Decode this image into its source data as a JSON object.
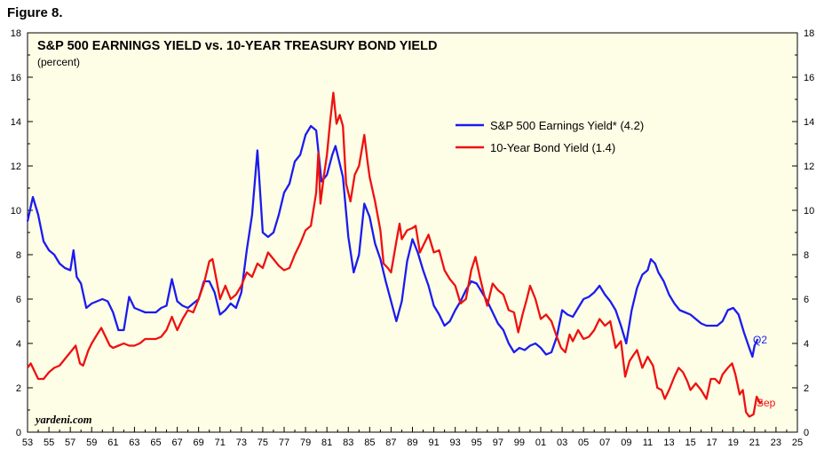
{
  "figure_label": "Figure 8.",
  "chart_data": {
    "type": "line",
    "title": "S&P 500 EARNINGS YIELD vs. 10-YEAR TREASURY BOND YIELD",
    "subtitle": "(percent)",
    "source": "yardeni.com",
    "xlim": [
      1953,
      2025
    ],
    "ylim": [
      0,
      18
    ],
    "y_ticks": [
      0,
      2,
      4,
      6,
      8,
      10,
      12,
      14,
      16,
      18
    ],
    "x_tick_labels": [
      "53",
      "55",
      "57",
      "59",
      "61",
      "63",
      "65",
      "67",
      "69",
      "71",
      "73",
      "75",
      "77",
      "79",
      "81",
      "83",
      "85",
      "87",
      "89",
      "91",
      "93",
      "95",
      "97",
      "99",
      "01",
      "03",
      "05",
      "07",
      "09",
      "11",
      "13",
      "15",
      "17",
      "19",
      "21",
      "23",
      "25"
    ],
    "background": "#fefee6",
    "grid": false,
    "legend_position": "top-right",
    "series": [
      {
        "name": "S&P 500 Earnings Yield* (4.2)",
        "end_label": "Q2",
        "color": "#1b1bf0",
        "points": [
          [
            1953.0,
            9.5
          ],
          [
            1953.5,
            10.6
          ],
          [
            1954.0,
            9.8
          ],
          [
            1954.5,
            8.6
          ],
          [
            1955.0,
            8.2
          ],
          [
            1955.5,
            8.0
          ],
          [
            1956.0,
            7.6
          ],
          [
            1956.5,
            7.4
          ],
          [
            1957.0,
            7.3
          ],
          [
            1957.3,
            8.2
          ],
          [
            1957.6,
            7.0
          ],
          [
            1958.0,
            6.7
          ],
          [
            1958.5,
            5.6
          ],
          [
            1959.0,
            5.8
          ],
          [
            1959.5,
            5.9
          ],
          [
            1960.0,
            6.0
          ],
          [
            1960.5,
            5.9
          ],
          [
            1961.0,
            5.4
          ],
          [
            1961.5,
            4.6
          ],
          [
            1962.0,
            4.6
          ],
          [
            1962.5,
            6.1
          ],
          [
            1963.0,
            5.6
          ],
          [
            1963.5,
            5.5
          ],
          [
            1964.0,
            5.4
          ],
          [
            1964.5,
            5.4
          ],
          [
            1965.0,
            5.4
          ],
          [
            1965.5,
            5.6
          ],
          [
            1966.0,
            5.7
          ],
          [
            1966.5,
            6.9
          ],
          [
            1967.0,
            5.9
          ],
          [
            1967.5,
            5.7
          ],
          [
            1968.0,
            5.6
          ],
          [
            1968.5,
            5.8
          ],
          [
            1969.0,
            6.0
          ],
          [
            1969.5,
            6.8
          ],
          [
            1970.0,
            6.8
          ],
          [
            1970.5,
            6.3
          ],
          [
            1971.0,
            5.3
          ],
          [
            1971.5,
            5.5
          ],
          [
            1972.0,
            5.8
          ],
          [
            1972.5,
            5.6
          ],
          [
            1973.0,
            6.3
          ],
          [
            1973.5,
            8.2
          ],
          [
            1974.0,
            9.8
          ],
          [
            1974.5,
            12.7
          ],
          [
            1974.8,
            10.5
          ],
          [
            1975.0,
            9.0
          ],
          [
            1975.5,
            8.8
          ],
          [
            1976.0,
            9.0
          ],
          [
            1976.5,
            9.8
          ],
          [
            1977.0,
            10.8
          ],
          [
            1977.5,
            11.2
          ],
          [
            1978.0,
            12.2
          ],
          [
            1978.5,
            12.5
          ],
          [
            1979.0,
            13.4
          ],
          [
            1979.5,
            13.8
          ],
          [
            1980.0,
            13.6
          ],
          [
            1980.5,
            11.3
          ],
          [
            1981.0,
            11.6
          ],
          [
            1981.5,
            12.5
          ],
          [
            1981.8,
            12.9
          ],
          [
            1982.0,
            12.5
          ],
          [
            1982.5,
            11.5
          ],
          [
            1983.0,
            8.8
          ],
          [
            1983.5,
            7.2
          ],
          [
            1984.0,
            8.0
          ],
          [
            1984.5,
            10.3
          ],
          [
            1985.0,
            9.7
          ],
          [
            1985.5,
            8.5
          ],
          [
            1986.0,
            7.8
          ],
          [
            1986.5,
            6.8
          ],
          [
            1987.0,
            5.9
          ],
          [
            1987.5,
            5.0
          ],
          [
            1988.0,
            5.9
          ],
          [
            1988.5,
            7.7
          ],
          [
            1989.0,
            8.7
          ],
          [
            1989.5,
            8.1
          ],
          [
            1990.0,
            7.3
          ],
          [
            1990.5,
            6.6
          ],
          [
            1991.0,
            5.7
          ],
          [
            1991.5,
            5.3
          ],
          [
            1992.0,
            4.8
          ],
          [
            1992.5,
            5.0
          ],
          [
            1993.0,
            5.5
          ],
          [
            1993.5,
            5.9
          ],
          [
            1994.0,
            6.4
          ],
          [
            1994.5,
            6.8
          ],
          [
            1995.0,
            6.7
          ],
          [
            1995.5,
            6.3
          ],
          [
            1996.0,
            5.9
          ],
          [
            1996.5,
            5.4
          ],
          [
            1997.0,
            4.9
          ],
          [
            1997.5,
            4.6
          ],
          [
            1998.0,
            4.0
          ],
          [
            1998.5,
            3.6
          ],
          [
            1999.0,
            3.8
          ],
          [
            1999.5,
            3.7
          ],
          [
            2000.0,
            3.9
          ],
          [
            2000.5,
            4.0
          ],
          [
            2001.0,
            3.8
          ],
          [
            2001.5,
            3.5
          ],
          [
            2002.0,
            3.6
          ],
          [
            2002.5,
            4.3
          ],
          [
            2003.0,
            5.5
          ],
          [
            2003.5,
            5.3
          ],
          [
            2004.0,
            5.2
          ],
          [
            2004.5,
            5.6
          ],
          [
            2005.0,
            6.0
          ],
          [
            2005.5,
            6.1
          ],
          [
            2006.0,
            6.3
          ],
          [
            2006.5,
            6.6
          ],
          [
            2007.0,
            6.2
          ],
          [
            2007.5,
            5.9
          ],
          [
            2008.0,
            5.5
          ],
          [
            2008.5,
            4.8
          ],
          [
            2009.0,
            4.0
          ],
          [
            2009.5,
            5.5
          ],
          [
            2010.0,
            6.5
          ],
          [
            2010.5,
            7.1
          ],
          [
            2011.0,
            7.3
          ],
          [
            2011.3,
            7.8
          ],
          [
            2011.7,
            7.6
          ],
          [
            2012.0,
            7.2
          ],
          [
            2012.5,
            6.8
          ],
          [
            2013.0,
            6.2
          ],
          [
            2013.5,
            5.8
          ],
          [
            2014.0,
            5.5
          ],
          [
            2014.5,
            5.4
          ],
          [
            2015.0,
            5.3
          ],
          [
            2015.5,
            5.1
          ],
          [
            2016.0,
            4.9
          ],
          [
            2016.5,
            4.8
          ],
          [
            2017.0,
            4.8
          ],
          [
            2017.5,
            4.8
          ],
          [
            2018.0,
            5.0
          ],
          [
            2018.5,
            5.5
          ],
          [
            2019.0,
            5.6
          ],
          [
            2019.5,
            5.3
          ],
          [
            2020.0,
            4.5
          ],
          [
            2020.5,
            3.8
          ],
          [
            2020.8,
            3.4
          ],
          [
            2021.0,
            3.9
          ],
          [
            2021.3,
            4.2
          ]
        ]
      },
      {
        "name": "10-Year Bond Yield (1.4)",
        "end_label": "Sep",
        "color": "#ee1111",
        "points": [
          [
            1953.0,
            2.9
          ],
          [
            1953.3,
            3.1
          ],
          [
            1953.7,
            2.7
          ],
          [
            1954.0,
            2.4
          ],
          [
            1954.5,
            2.4
          ],
          [
            1955.0,
            2.7
          ],
          [
            1955.5,
            2.9
          ],
          [
            1956.0,
            3.0
          ],
          [
            1956.5,
            3.3
          ],
          [
            1957.0,
            3.6
          ],
          [
            1957.5,
            3.9
          ],
          [
            1957.9,
            3.1
          ],
          [
            1958.2,
            3.0
          ],
          [
            1958.7,
            3.7
          ],
          [
            1959.0,
            4.0
          ],
          [
            1959.5,
            4.4
          ],
          [
            1959.9,
            4.7
          ],
          [
            1960.3,
            4.3
          ],
          [
            1960.7,
            3.9
          ],
          [
            1961.0,
            3.8
          ],
          [
            1961.5,
            3.9
          ],
          [
            1962.0,
            4.0
          ],
          [
            1962.5,
            3.9
          ],
          [
            1963.0,
            3.9
          ],
          [
            1963.5,
            4.0
          ],
          [
            1964.0,
            4.2
          ],
          [
            1964.5,
            4.2
          ],
          [
            1965.0,
            4.2
          ],
          [
            1965.5,
            4.3
          ],
          [
            1966.0,
            4.6
          ],
          [
            1966.5,
            5.2
          ],
          [
            1967.0,
            4.6
          ],
          [
            1967.5,
            5.1
          ],
          [
            1968.0,
            5.5
          ],
          [
            1968.5,
            5.4
          ],
          [
            1969.0,
            6.0
          ],
          [
            1969.5,
            6.7
          ],
          [
            1970.0,
            7.7
          ],
          [
            1970.3,
            7.8
          ],
          [
            1970.7,
            6.8
          ],
          [
            1971.0,
            6.0
          ],
          [
            1971.5,
            6.6
          ],
          [
            1972.0,
            6.0
          ],
          [
            1972.5,
            6.2
          ],
          [
            1973.0,
            6.6
          ],
          [
            1973.5,
            7.2
          ],
          [
            1974.0,
            7.0
          ],
          [
            1974.5,
            7.6
          ],
          [
            1975.0,
            7.4
          ],
          [
            1975.5,
            8.1
          ],
          [
            1976.0,
            7.8
          ],
          [
            1976.5,
            7.5
          ],
          [
            1977.0,
            7.3
          ],
          [
            1977.5,
            7.4
          ],
          [
            1978.0,
            8.0
          ],
          [
            1978.5,
            8.5
          ],
          [
            1979.0,
            9.1
          ],
          [
            1979.5,
            9.3
          ],
          [
            1980.0,
            10.8
          ],
          [
            1980.2,
            12.6
          ],
          [
            1980.4,
            10.3
          ],
          [
            1980.7,
            11.5
          ],
          [
            1981.0,
            12.5
          ],
          [
            1981.3,
            14.0
          ],
          [
            1981.6,
            15.3
          ],
          [
            1981.9,
            13.9
          ],
          [
            1982.2,
            14.3
          ],
          [
            1982.5,
            13.8
          ],
          [
            1982.8,
            11.2
          ],
          [
            1983.2,
            10.4
          ],
          [
            1983.6,
            11.6
          ],
          [
            1984.0,
            12.0
          ],
          [
            1984.5,
            13.4
          ],
          [
            1984.8,
            12.2
          ],
          [
            1985.0,
            11.5
          ],
          [
            1985.5,
            10.4
          ],
          [
            1986.0,
            9.1
          ],
          [
            1986.3,
            7.6
          ],
          [
            1986.7,
            7.4
          ],
          [
            1987.0,
            7.2
          ],
          [
            1987.5,
            8.6
          ],
          [
            1987.8,
            9.4
          ],
          [
            1988.0,
            8.7
          ],
          [
            1988.5,
            9.1
          ],
          [
            1989.0,
            9.2
          ],
          [
            1989.3,
            9.3
          ],
          [
            1989.7,
            8.1
          ],
          [
            1990.0,
            8.4
          ],
          [
            1990.5,
            8.9
          ],
          [
            1991.0,
            8.1
          ],
          [
            1991.5,
            8.2
          ],
          [
            1992.0,
            7.3
          ],
          [
            1992.5,
            6.9
          ],
          [
            1993.0,
            6.6
          ],
          [
            1993.5,
            5.8
          ],
          [
            1994.0,
            6.0
          ],
          [
            1994.5,
            7.3
          ],
          [
            1994.9,
            7.9
          ],
          [
            1995.3,
            7.0
          ],
          [
            1995.7,
            6.2
          ],
          [
            1996.0,
            5.7
          ],
          [
            1996.5,
            6.7
          ],
          [
            1997.0,
            6.4
          ],
          [
            1997.5,
            6.2
          ],
          [
            1998.0,
            5.5
          ],
          [
            1998.5,
            5.4
          ],
          [
            1998.9,
            4.5
          ],
          [
            1999.3,
            5.3
          ],
          [
            1999.7,
            6.0
          ],
          [
            2000.0,
            6.6
          ],
          [
            2000.5,
            6.0
          ],
          [
            2001.0,
            5.1
          ],
          [
            2001.5,
            5.3
          ],
          [
            2002.0,
            5.0
          ],
          [
            2002.5,
            4.3
          ],
          [
            2002.9,
            3.8
          ],
          [
            2003.3,
            3.6
          ],
          [
            2003.7,
            4.4
          ],
          [
            2004.0,
            4.1
          ],
          [
            2004.5,
            4.6
          ],
          [
            2005.0,
            4.2
          ],
          [
            2005.5,
            4.3
          ],
          [
            2006.0,
            4.6
          ],
          [
            2006.5,
            5.1
          ],
          [
            2007.0,
            4.8
          ],
          [
            2007.5,
            5.0
          ],
          [
            2008.0,
            3.8
          ],
          [
            2008.5,
            4.1
          ],
          [
            2008.9,
            2.5
          ],
          [
            2009.3,
            3.2
          ],
          [
            2009.7,
            3.5
          ],
          [
            2010.0,
            3.7
          ],
          [
            2010.5,
            2.9
          ],
          [
            2011.0,
            3.4
          ],
          [
            2011.5,
            3.0
          ],
          [
            2011.9,
            2.0
          ],
          [
            2012.3,
            1.9
          ],
          [
            2012.6,
            1.5
          ],
          [
            2013.0,
            1.9
          ],
          [
            2013.5,
            2.5
          ],
          [
            2013.9,
            2.9
          ],
          [
            2014.3,
            2.7
          ],
          [
            2014.7,
            2.3
          ],
          [
            2015.0,
            1.9
          ],
          [
            2015.5,
            2.2
          ],
          [
            2016.0,
            1.9
          ],
          [
            2016.5,
            1.5
          ],
          [
            2016.9,
            2.4
          ],
          [
            2017.3,
            2.4
          ],
          [
            2017.7,
            2.2
          ],
          [
            2018.0,
            2.6
          ],
          [
            2018.5,
            2.9
          ],
          [
            2018.9,
            3.1
          ],
          [
            2019.2,
            2.6
          ],
          [
            2019.6,
            1.7
          ],
          [
            2019.9,
            1.9
          ],
          [
            2020.2,
            0.9
          ],
          [
            2020.5,
            0.7
          ],
          [
            2020.9,
            0.8
          ],
          [
            2021.2,
            1.6
          ],
          [
            2021.5,
            1.3
          ],
          [
            2021.7,
            1.4
          ]
        ]
      }
    ]
  }
}
